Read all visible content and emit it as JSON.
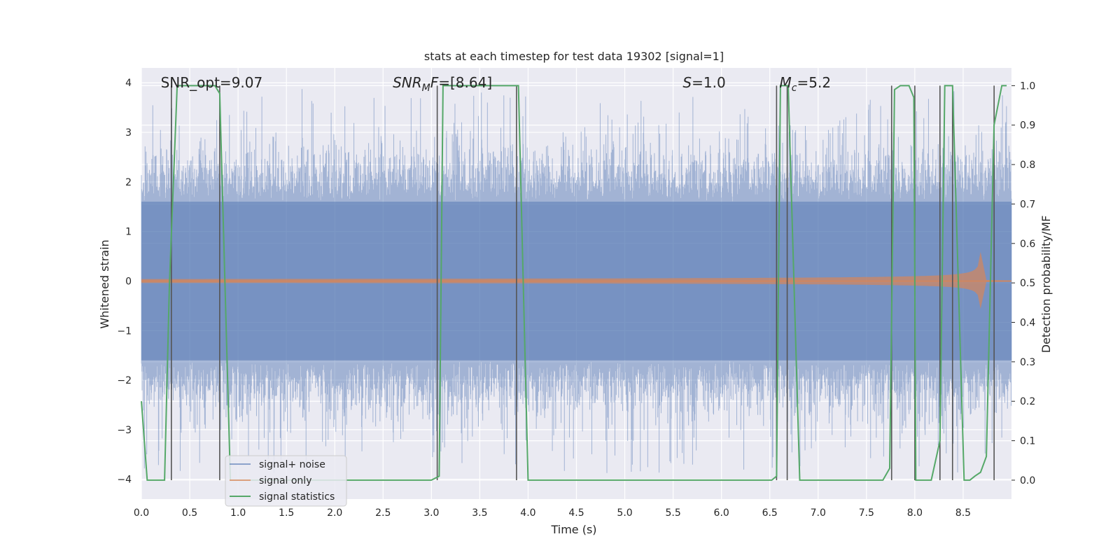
{
  "chart_data": {
    "type": "line",
    "title": "stats at each timestep for test data 19302 [signal=1]",
    "xlabel": "Time (s)",
    "ylabel": "Whitened strain",
    "ylabel_right": "Detection probability/MF",
    "xlim": [
      0.0,
      9.0
    ],
    "ylim": [
      -4.4,
      4.3
    ],
    "ylim_right": [
      -0.048,
      1.045
    ],
    "x_ticks": [
      "0.0",
      "0.5",
      "1.0",
      "1.5",
      "2.0",
      "2.5",
      "3.0",
      "3.5",
      "4.0",
      "4.5",
      "5.0",
      "5.5",
      "6.0",
      "6.5",
      "7.0",
      "7.5",
      "8.0",
      "8.5"
    ],
    "y_ticks": [
      "−4",
      "−3",
      "−2",
      "−1",
      "0",
      "1",
      "2",
      "3",
      "4"
    ],
    "y_right_ticks": [
      "0.0",
      "0.1",
      "0.2",
      "0.3",
      "0.4",
      "0.5",
      "0.6",
      "0.7",
      "0.8",
      "0.9",
      "1.0"
    ],
    "grid": true,
    "legend_position": "bottom-left",
    "annotations": [
      {
        "id": "snr-opt",
        "x": 0.2,
        "y": 4.0,
        "text": "SNR_opt=9.07"
      },
      {
        "id": "snr-mf",
        "x": 2.6,
        "y": 4.0,
        "base": "SNR",
        "sub": "M",
        "after": "F=[8.64]"
      },
      {
        "id": "s-stat",
        "x": 5.6,
        "y": 4.0,
        "base": "S",
        "after": "=1.0"
      },
      {
        "id": "mc",
        "x": 6.6,
        "y": 4.0,
        "base": "M",
        "sub": "c",
        "after": "=5.2"
      }
    ],
    "series": [
      {
        "name": "signal+ noise",
        "color": "#4c72b0",
        "axis": "left",
        "description": "whitened noise, peak ~±4, core ~±1.6",
        "duration": 9.0,
        "envelope_core": 1.6,
        "envelope_peak": 3.9
      },
      {
        "name": "signal only",
        "color": "#dd8452",
        "axis": "left",
        "description": "chirp with growing amplitude ending near 8.7 s",
        "start": 0.0,
        "merger": 8.68,
        "start_amplitude": 0.04,
        "peak_amplitude": 0.75
      },
      {
        "name": "signal statistics",
        "color": "#55a868",
        "axis": "right",
        "x": [
          0.0,
          0.06,
          0.24,
          0.29,
          0.37,
          0.76,
          0.81,
          0.92,
          3.0,
          3.08,
          3.12,
          3.9,
          4.0,
          6.52,
          6.57,
          6.61,
          6.69,
          6.81,
          7.67,
          7.74,
          7.79,
          7.85,
          7.94,
          7.99,
          8.01,
          8.07,
          8.17,
          8.26,
          8.31,
          8.39,
          8.51,
          8.57,
          8.62,
          8.68,
          8.74,
          8.82,
          8.9,
          8.95
        ],
        "y": [
          0.2,
          0.0,
          0.0,
          0.5,
          1.0,
          1.0,
          0.98,
          0.0,
          0.0,
          0.01,
          1.0,
          1.0,
          0.0,
          0.0,
          0.01,
          1.0,
          1.0,
          0.0,
          0.0,
          0.03,
          0.99,
          1.0,
          1.0,
          0.97,
          0.0,
          0.0,
          0.0,
          0.1,
          1.0,
          1.0,
          0.0,
          0.0,
          0.01,
          0.02,
          0.06,
          0.9,
          1.0,
          1.0
        ]
      }
    ],
    "detection_markers": [
      0.31,
      0.81,
      3.06,
      3.88,
      6.57,
      6.68,
      7.76,
      8.0,
      8.26,
      8.39,
      8.82
    ]
  },
  "legend": {
    "items": [
      "signal+ noise",
      "signal only",
      "signal statistics"
    ]
  },
  "colors": {
    "axes_bg": "#eaeaf2",
    "grid": "#ffffff",
    "noise": "#4c72b0",
    "signal": "#dd8452",
    "stats": "#55a868",
    "markers": "#555555"
  }
}
